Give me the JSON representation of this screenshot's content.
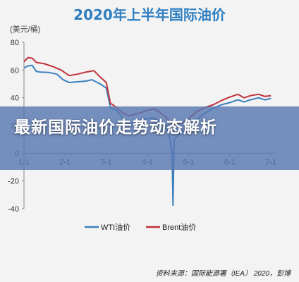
{
  "chart_data": {
    "type": "line",
    "title": "2020年上半年国际油价",
    "ylabel": "(美元/桶)",
    "source": "资料来源：国际能源署（IEA） 2020，彭博",
    "ylim": [
      -40,
      80
    ],
    "yticks": [
      80,
      60,
      40,
      20,
      0,
      -20,
      -40
    ],
    "xlim": [
      1,
      7.1
    ],
    "xticks": [
      {
        "label": "1-1",
        "x": 1
      },
      {
        "label": "2-1",
        "x": 2
      },
      {
        "label": "3-1",
        "x": 3
      },
      {
        "label": "4-1",
        "x": 4
      },
      {
        "label": "5-1",
        "x": 5
      },
      {
        "label": "6-1",
        "x": 6
      },
      {
        "label": "7-1",
        "x": 7
      }
    ],
    "grid": false,
    "legend_position": "bottom",
    "series": [
      {
        "name": "WTI油价",
        "color": "#3b7fbd",
        "points": [
          [
            1.0,
            61.5
          ],
          [
            1.1,
            63.0
          ],
          [
            1.2,
            63.3
          ],
          [
            1.3,
            59.0
          ],
          [
            1.4,
            58.5
          ],
          [
            1.6,
            58.3
          ],
          [
            1.8,
            57.0
          ],
          [
            1.95,
            53.0
          ],
          [
            2.1,
            51.0
          ],
          [
            2.3,
            51.5
          ],
          [
            2.5,
            52.0
          ],
          [
            2.65,
            53.0
          ],
          [
            2.85,
            50.0
          ],
          [
            3.0,
            47.0
          ],
          [
            3.1,
            33.0
          ],
          [
            3.25,
            31.0
          ],
          [
            3.4,
            25.0
          ],
          [
            3.55,
            21.0
          ],
          [
            3.7,
            22.0
          ],
          [
            3.85,
            24.0
          ],
          [
            4.0,
            25.0
          ],
          [
            4.15,
            25.5
          ],
          [
            4.3,
            22.5
          ],
          [
            4.45,
            20.0
          ],
          [
            4.55,
            10.0
          ],
          [
            4.6,
            0.0
          ],
          [
            4.62,
            -37.5
          ],
          [
            4.65,
            10.0
          ],
          [
            4.75,
            13.0
          ],
          [
            4.9,
            17.0
          ],
          [
            5.0,
            19.5
          ],
          [
            5.2,
            24.5
          ],
          [
            5.4,
            29.0
          ],
          [
            5.6,
            32.5
          ],
          [
            5.8,
            35.0
          ],
          [
            6.0,
            36.5
          ],
          [
            6.2,
            38.5
          ],
          [
            6.35,
            37.0
          ],
          [
            6.5,
            38.5
          ],
          [
            6.7,
            40.0
          ],
          [
            6.85,
            38.5
          ],
          [
            7.0,
            39.5
          ]
        ]
      },
      {
        "name": "Brent油价",
        "color": "#c0313a",
        "points": [
          [
            1.0,
            66.0
          ],
          [
            1.1,
            69.0
          ],
          [
            1.2,
            68.5
          ],
          [
            1.3,
            65.5
          ],
          [
            1.5,
            64.5
          ],
          [
            1.7,
            62.5
          ],
          [
            1.9,
            60.0
          ],
          [
            2.0,
            58.0
          ],
          [
            2.1,
            56.0
          ],
          [
            2.3,
            57.0
          ],
          [
            2.5,
            58.5
          ],
          [
            2.7,
            59.5
          ],
          [
            2.85,
            55.0
          ],
          [
            3.0,
            51.0
          ],
          [
            3.1,
            36.0
          ],
          [
            3.25,
            33.0
          ],
          [
            3.4,
            29.0
          ],
          [
            3.55,
            27.0
          ],
          [
            3.75,
            28.5
          ],
          [
            3.9,
            30.0
          ],
          [
            4.0,
            31.0
          ],
          [
            4.15,
            32.0
          ],
          [
            4.3,
            29.5
          ],
          [
            4.45,
            26.0
          ],
          [
            4.58,
            21.0
          ],
          [
            4.7,
            20.5
          ],
          [
            4.85,
            22.0
          ],
          [
            5.0,
            25.0
          ],
          [
            5.2,
            30.0
          ],
          [
            5.4,
            33.0
          ],
          [
            5.6,
            35.0
          ],
          [
            5.8,
            38.0
          ],
          [
            6.0,
            40.5
          ],
          [
            6.2,
            42.5
          ],
          [
            6.35,
            40.0
          ],
          [
            6.5,
            41.5
          ],
          [
            6.7,
            42.5
          ],
          [
            6.85,
            41.0
          ],
          [
            7.0,
            41.5
          ]
        ]
      }
    ]
  },
  "overlay": {
    "headline": "最新国际油价走势动态解析"
  }
}
